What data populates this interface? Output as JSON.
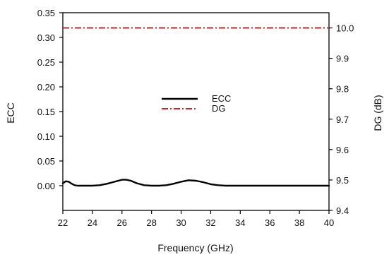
{
  "chart_data": {
    "type": "line",
    "title": "",
    "xlabel": "Frequency (GHz)",
    "ylabel_left": "ECC",
    "ylabel_right": "DG (dB)",
    "xlim": [
      22,
      40
    ],
    "ylim_left": [
      -0.05,
      0.35
    ],
    "ylim_right": [
      9.4,
      10.05
    ],
    "x_ticks": [
      22,
      24,
      26,
      28,
      30,
      32,
      34,
      36,
      38,
      40
    ],
    "x_tick_labels": [
      "22",
      "24",
      "26",
      "28",
      "30",
      "32",
      "34",
      "36",
      "38",
      "40"
    ],
    "y_left_ticks": [
      0.0,
      0.05,
      0.1,
      0.15,
      0.2,
      0.25,
      0.3,
      0.35
    ],
    "y_left_tick_labels": [
      "0.00",
      "0.05",
      "0.10",
      "0.15",
      "0.20",
      "0.25",
      "0.30",
      "0.35"
    ],
    "y_right_ticks": [
      9.4,
      9.5,
      9.6,
      9.7,
      9.8,
      9.9,
      10.0
    ],
    "y_right_tick_labels": [
      "9.4",
      "9.5",
      "9.6",
      "9.7",
      "9.8",
      "9.9",
      "10.0"
    ],
    "grid": false,
    "legend_position": "center",
    "series": [
      {
        "name": "ECC",
        "axis": "left",
        "color": "#000000",
        "style": "solid",
        "x": [
          22.0,
          22.2,
          22.4,
          22.6,
          22.8,
          23.0,
          23.5,
          24.0,
          24.5,
          25.0,
          25.5,
          26.0,
          26.3,
          26.6,
          27.0,
          27.5,
          28.0,
          28.5,
          29.0,
          29.5,
          30.0,
          30.5,
          31.0,
          31.5,
          32.0,
          32.5,
          33.0,
          34.0,
          35.0,
          36.0,
          37.0,
          38.0,
          39.0,
          40.0
        ],
        "y": [
          0.005,
          0.009,
          0.008,
          0.004,
          0.001,
          0.0,
          0.0,
          0.0,
          0.001,
          0.004,
          0.008,
          0.012,
          0.012,
          0.01,
          0.005,
          0.001,
          0.0,
          0.0,
          0.001,
          0.004,
          0.008,
          0.011,
          0.01,
          0.007,
          0.003,
          0.001,
          0.0,
          0.0,
          0.0,
          0.0,
          0.0,
          0.0,
          0.0,
          0.0
        ]
      },
      {
        "name": "DG",
        "axis": "right",
        "color": "#c0282a",
        "style": "dash-dot",
        "x": [
          22,
          40
        ],
        "y": [
          10.0,
          10.0
        ]
      }
    ]
  }
}
